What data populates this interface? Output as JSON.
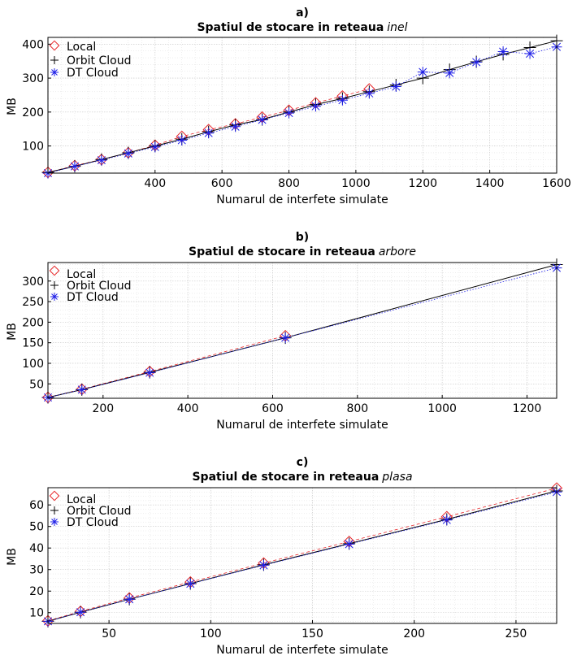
{
  "chart_data": [
    {
      "type": "line",
      "panel_label": "a)",
      "title_main": "Spatiul de stocare in reteaua",
      "title_italic": "inel",
      "xlabel": "Numarul de interfete simulate",
      "ylabel": "MB",
      "xlim": [
        80,
        1600
      ],
      "ylim": [
        20,
        420
      ],
      "xticks": [
        400,
        600,
        800,
        1000,
        1200,
        1400,
        1600
      ],
      "yticks": [
        100,
        200,
        300,
        400
      ],
      "legend_position": "top-left",
      "series": [
        {
          "name": "Local",
          "color": "#e8272a",
          "marker": "diamond",
          "line_style": "dashed",
          "x": [
            80,
            160,
            240,
            320,
            400,
            480,
            560,
            640,
            720,
            800,
            880,
            960,
            1040
          ],
          "y": [
            22,
            42,
            60,
            80,
            102,
            128,
            148,
            165,
            185,
            205,
            227,
            247,
            268
          ]
        },
        {
          "name": "Orbit Cloud",
          "color": "#000000",
          "marker": "plus",
          "line_style": "solid",
          "x": [
            80,
            160,
            240,
            320,
            400,
            480,
            560,
            640,
            720,
            800,
            880,
            960,
            1040,
            1120,
            1200,
            1280,
            1360,
            1440,
            1520,
            1600
          ],
          "y": [
            22,
            40,
            60,
            80,
            100,
            120,
            142,
            162,
            178,
            200,
            222,
            240,
            260,
            280,
            300,
            325,
            348,
            370,
            390,
            410
          ]
        },
        {
          "name": "DT Cloud",
          "color": "#1f1fe8",
          "marker": "asterisk",
          "line_style": "dotted",
          "x": [
            80,
            160,
            240,
            320,
            400,
            480,
            560,
            640,
            720,
            800,
            880,
            960,
            1040,
            1120,
            1200,
            1280,
            1360,
            1440,
            1520,
            1600
          ],
          "y": [
            20,
            40,
            58,
            78,
            97,
            117,
            138,
            157,
            177,
            197,
            217,
            235,
            255,
            275,
            318,
            315,
            347,
            378,
            372,
            392
          ]
        }
      ]
    },
    {
      "type": "line",
      "panel_label": "b)",
      "title_main": "Spatiul de stocare in reteaua",
      "title_italic": "arbore",
      "xlabel": "Numarul de interfete simulate",
      "ylabel": "MB",
      "xlim": [
        70,
        1270
      ],
      "ylim": [
        15,
        345
      ],
      "xticks": [
        200,
        400,
        600,
        800,
        1000,
        1200
      ],
      "yticks": [
        50,
        100,
        150,
        200,
        250,
        300
      ],
      "legend_position": "top-left",
      "series": [
        {
          "name": "Local",
          "color": "#e8272a",
          "marker": "diamond",
          "line_style": "dashed",
          "x": [
            70,
            150,
            310,
            630
          ],
          "y": [
            17,
            37,
            80,
            167
          ]
        },
        {
          "name": "Orbit Cloud",
          "color": "#000000",
          "marker": "plus",
          "line_style": "solid",
          "x": [
            70,
            150,
            310,
            630,
            1270
          ],
          "y": [
            17,
            36,
            78,
            162,
            340
          ]
        },
        {
          "name": "DT Cloud",
          "color": "#1f1fe8",
          "marker": "asterisk",
          "line_style": "dotted",
          "x": [
            70,
            150,
            310,
            630,
            1270
          ],
          "y": [
            17,
            36,
            77,
            162,
            332
          ]
        }
      ]
    },
    {
      "type": "line",
      "panel_label": "c)",
      "title_main": "Spatiul de stocare in reteaua",
      "title_italic": "plasa",
      "xlabel": "Numarul de interfete simulate",
      "ylabel": "MB",
      "xlim": [
        20,
        270
      ],
      "ylim": [
        5,
        68
      ],
      "xticks": [
        50,
        100,
        150,
        200,
        250
      ],
      "yticks": [
        10,
        20,
        30,
        40,
        50,
        60
      ],
      "legend_position": "top-left",
      "series": [
        {
          "name": "Local",
          "color": "#e8272a",
          "marker": "diamond",
          "line_style": "dashed",
          "x": [
            20,
            36,
            60,
            90,
            126,
            168,
            216,
            270
          ],
          "y": [
            6.2,
            10.6,
            16.8,
            24.2,
            33.0,
            43.0,
            54.5,
            67.8
          ]
        },
        {
          "name": "Orbit Cloud",
          "color": "#000000",
          "marker": "plus",
          "line_style": "solid",
          "x": [
            20,
            36,
            60,
            90,
            126,
            168,
            216,
            270
          ],
          "y": [
            6,
            10.2,
            16.2,
            23.5,
            32.2,
            42.0,
            53.3,
            66.5
          ]
        },
        {
          "name": "DT Cloud",
          "color": "#1f1fe8",
          "marker": "asterisk",
          "line_style": "dotted",
          "x": [
            20,
            36,
            60,
            90,
            126,
            168,
            216,
            270
          ],
          "y": [
            6,
            10.2,
            16.2,
            23.4,
            32.0,
            41.8,
            53.0,
            66.0
          ]
        }
      ]
    }
  ]
}
